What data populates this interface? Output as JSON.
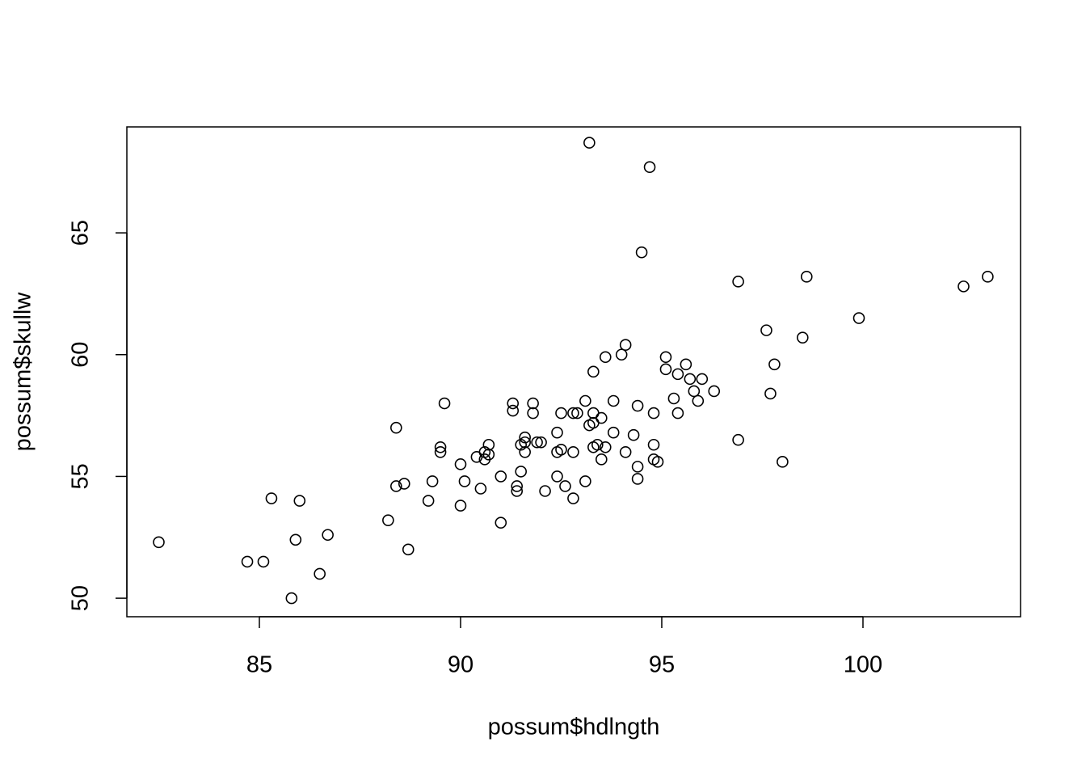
{
  "chart_data": {
    "type": "scatter",
    "xlabel": "possum$hdlngth",
    "ylabel": "possum$skullw",
    "x": [
      82.5,
      84.7,
      85.1,
      85.3,
      85.9,
      85.8,
      86.0,
      86.5,
      86.7,
      88.2,
      88.4,
      88.4,
      88.6,
      88.7,
      89.2,
      89.3,
      89.5,
      89.5,
      89.6,
      90.0,
      90.0,
      90.1,
      90.4,
      90.5,
      90.6,
      90.6,
      90.7,
      90.7,
      91.0,
      91.0,
      91.3,
      91.3,
      91.4,
      91.4,
      91.5,
      91.5,
      91.6,
      91.6,
      91.6,
      91.8,
      91.8,
      91.9,
      92.0,
      92.1,
      92.4,
      92.4,
      92.4,
      92.5,
      92.5,
      92.6,
      92.8,
      92.8,
      92.8,
      92.9,
      93.1,
      93.1,
      93.2,
      93.2,
      93.3,
      93.3,
      93.3,
      93.3,
      93.4,
      93.5,
      93.5,
      93.6,
      93.6,
      93.8,
      93.8,
      94.0,
      94.1,
      94.1,
      94.3,
      94.4,
      94.4,
      94.4,
      94.5,
      94.7,
      94.8,
      94.8,
      94.8,
      94.9,
      95.1,
      95.1,
      95.3,
      95.4,
      95.4,
      95.6,
      95.7,
      95.8,
      95.9,
      96.0,
      96.3,
      96.9,
      96.9,
      97.6,
      97.7,
      97.8,
      98.0,
      98.5,
      98.6,
      99.9,
      102.5,
      103.1
    ],
    "values": [
      52.3,
      51.5,
      51.5,
      54.1,
      52.4,
      50.0,
      54.0,
      51.0,
      52.6,
      53.2,
      57.0,
      54.6,
      54.7,
      52.0,
      54.0,
      54.8,
      56.2,
      56.0,
      58.0,
      55.5,
      53.8,
      54.8,
      55.8,
      54.5,
      56.0,
      55.7,
      56.3,
      55.9,
      55.0,
      53.1,
      58.0,
      57.7,
      54.6,
      54.4,
      55.2,
      56.3,
      56.6,
      56.4,
      56.0,
      58.0,
      57.6,
      56.4,
      56.4,
      54.4,
      56.8,
      56.0,
      55.0,
      57.6,
      56.1,
      54.6,
      57.6,
      56.0,
      54.1,
      57.6,
      58.1,
      54.8,
      68.7,
      57.1,
      59.3,
      57.6,
      57.2,
      56.2,
      56.3,
      57.4,
      55.7,
      59.9,
      56.2,
      58.1,
      56.8,
      60.0,
      60.4,
      56.0,
      56.7,
      57.9,
      55.4,
      54.9,
      64.2,
      67.7,
      57.6,
      56.3,
      55.7,
      55.6,
      59.9,
      59.4,
      58.2,
      59.2,
      57.6,
      59.6,
      59.0,
      58.5,
      58.1,
      59.0,
      58.5,
      63.0,
      56.5,
      61.0,
      58.4,
      59.6,
      55.6,
      60.7,
      63.2,
      61.5,
      62.8,
      63.2
    ],
    "color": "#000000",
    "xlim": [
      81.707,
      103.916
    ],
    "ylim": [
      49.24,
      69.35
    ],
    "xticks": [
      85,
      90,
      95,
      100
    ],
    "yticks": [
      50,
      55,
      60,
      65
    ]
  }
}
